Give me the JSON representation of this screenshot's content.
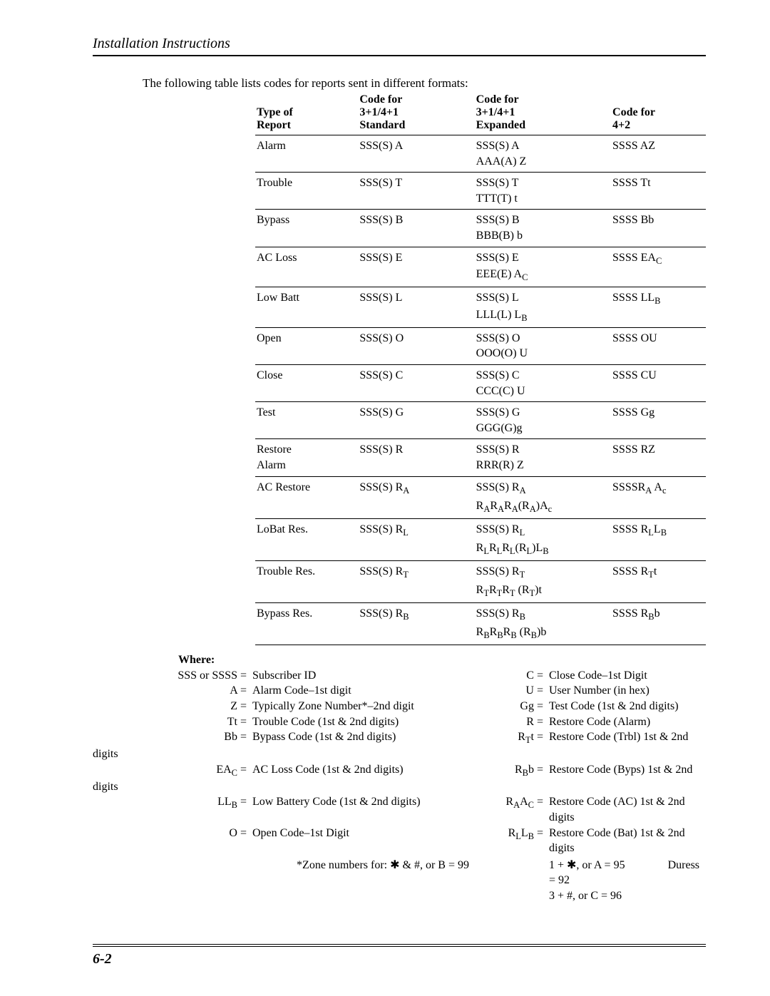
{
  "header": "Installation Instructions",
  "intro": "The following table lists codes for reports sent in different formats:",
  "table": {
    "head": {
      "c1a": "Type of",
      "c1b": "Report",
      "c2a": "Code for",
      "c2b": "3+1/4+1",
      "c2c": "Standard",
      "c3a": "Code for",
      "c3b": "3+1/4+1",
      "c3c": "Expanded",
      "c4a": "Code for",
      "c4b": "4+2"
    },
    "rows": [
      {
        "type": "Alarm",
        "std": "SSS(S) A",
        "exp": "SSS(S) A\nAAA(A) Z",
        "f42": "SSSS AZ"
      },
      {
        "type": "Trouble",
        "std": "SSS(S) T",
        "exp": "SSS(S) T\nTTT(T) t",
        "f42": "SSSS Tt"
      },
      {
        "type": "Bypass",
        "std": "SSS(S) B",
        "exp": "SSS(S) B\nBBB(B) b",
        "f42": "SSSS Bb"
      },
      {
        "type": "AC Loss",
        "std": "SSS(S) E",
        "exp": "SSS(S) E",
        "exp2": "EEE(E) A|C",
        "f42": "SSSS EA|C"
      },
      {
        "type": "Low Batt",
        "std": "SSS(S) L",
        "exp": "SSS(S) L",
        "exp2": "LLL(L) L|B",
        "f42": "SSSS LL|B"
      },
      {
        "type": "Open",
        "std": "SSS(S) O",
        "exp": "SSS(S) O\nOOO(O) U",
        "f42": "SSSS OU"
      },
      {
        "type": "Close",
        "std": "SSS(S) C",
        "exp": "SSS(S) C\nCCC(C) U",
        "f42": "SSSS CU"
      },
      {
        "type": "Test",
        "std": "SSS(S) G",
        "exp": "SSS(S) G\nGGG(G)g",
        "f42": "SSSS Gg"
      },
      {
        "type": "Restore\nAlarm",
        "std": "SSS(S) R",
        "exp": "SSS(S) R\nRRR(R) Z",
        "f42": "SSSS RZ"
      },
      {
        "type": "AC Restore",
        "std": "SSS(S) R|A",
        "exp": "SSS(S) R|A",
        "exp2": "R|A~R|A~R|A~(R|A~)A|c",
        "f42": "SSSSR|A~ A|c"
      },
      {
        "type": "LoBat Res.",
        "std": "SSS(S) R|L",
        "exp": "SSS(S) R|L",
        "exp2": "R|L~R|L~R|L~(R|L~)L|B",
        "f42": "SSSS R|L~L|B"
      },
      {
        "type": "Trouble Res.",
        "std": "SSS(S) R|T",
        "exp": "SSS(S) R|T",
        "exp2": "R|T~R|T~R|T~ (R|T~)t",
        "f42": "SSSS R|T~t"
      },
      {
        "type": "Bypass Res.",
        "std": "SSS(S) R|B",
        "exp": "SSS(S) R|B",
        "exp2": "R|B~R|B~R|B~ (R|B~)b",
        "f42": "SSSS R|B~b"
      }
    ]
  },
  "where": {
    "heading": "Where:",
    "left": [
      {
        "k": "SSS or  SSSS =",
        "v": "Subscriber ID"
      },
      {
        "k": "A =",
        "v": "Alarm Code–1st digit"
      },
      {
        "k": "Z =",
        "v": "Typically Zone Number*–2nd digit"
      },
      {
        "k": "Tt =",
        "v": "Trouble Code (1st & 2nd digits)"
      },
      {
        "k": "Bb =",
        "v": "Bypass Code (1st & 2nd digits)"
      },
      {
        "k": "EA|C~ =",
        "v": "AC Loss Code (1st & 2nd digits)"
      },
      {
        "k": "LL|B~ =",
        "v": "Low Battery Code (1st & 2nd digits)"
      },
      {
        "k": "O =",
        "v": "Open Code–1st Digit"
      }
    ],
    "right": [
      {
        "k": "C =",
        "v": "Close Code–1st Digit"
      },
      {
        "k": "U =",
        "v": "User Number (in hex)"
      },
      {
        "k": "Gg =",
        "v": "Test Code (1st & 2nd digits)"
      },
      {
        "k": "R =",
        "v": "Restore Code (Alarm)"
      },
      {
        "k": "R|T~t =",
        "v": "Restore Code (Trbl) 1st & 2nd"
      },
      {
        "k": "R|B~b =",
        "v": "Restore Code (Byps) 1st & 2nd"
      },
      {
        "k": "R|A~A|C~ =",
        "v": "Restore Code (AC) 1st & 2nd digits"
      },
      {
        "k": "R|L~L|B~ =",
        "v": "Restore Code (Bat) 1st & 2nd digits"
      }
    ],
    "overflow": [
      "digits",
      "digits"
    ],
    "zone": {
      "left": "*Zone numbers for: ✱ & #, or B = 99",
      "right1": "1 + ✱, or A = 95",
      "right2": "3 + #, or C = 96",
      "duress": "Duress = 92"
    }
  },
  "footer": "6-2"
}
